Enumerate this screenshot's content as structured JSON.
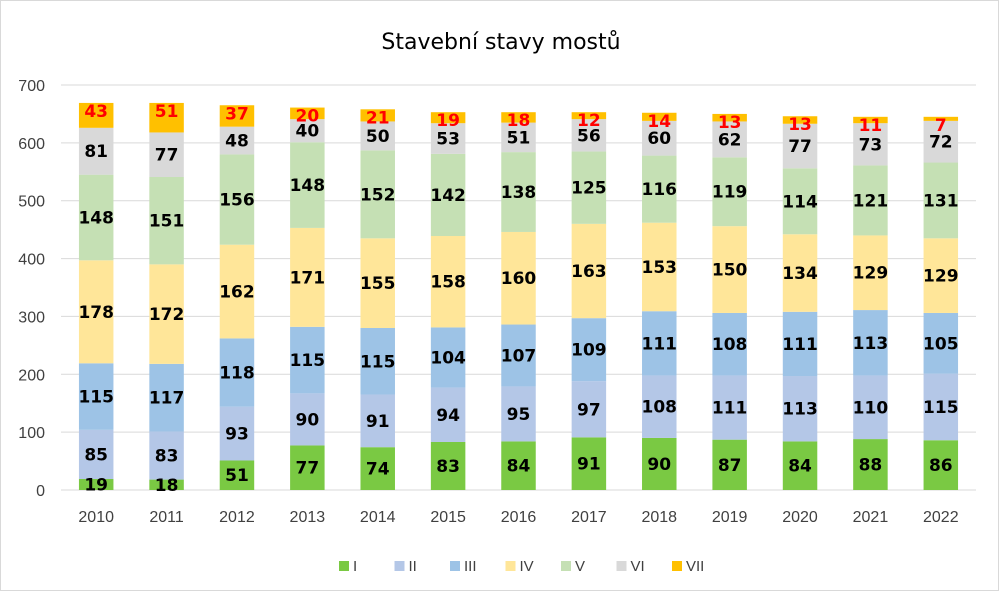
{
  "chart_data": {
    "type": "bar",
    "stacked": true,
    "title": "Stavební stavy mostů",
    "categories": [
      "2010",
      "2011",
      "2012",
      "2013",
      "2014",
      "2015",
      "2016",
      "2017",
      "2018",
      "2019",
      "2020",
      "2021",
      "2022"
    ],
    "series": [
      {
        "name": "I",
        "color": "#7ac943",
        "label_color": "#000000",
        "values": [
          19,
          18,
          51,
          77,
          74,
          83,
          84,
          91,
          90,
          87,
          84,
          88,
          86
        ]
      },
      {
        "name": "II",
        "color": "#b4c7e7",
        "label_color": "#000000",
        "values": [
          85,
          83,
          93,
          90,
          91,
          94,
          95,
          97,
          108,
          111,
          113,
          110,
          115
        ]
      },
      {
        "name": "III",
        "color": "#9dc3e6",
        "label_color": "#000000",
        "values": [
          115,
          117,
          118,
          115,
          115,
          104,
          107,
          109,
          111,
          108,
          111,
          113,
          105
        ]
      },
      {
        "name": "IV",
        "color": "#ffe699",
        "label_color": "#000000",
        "values": [
          178,
          172,
          162,
          171,
          155,
          158,
          160,
          163,
          153,
          150,
          134,
          129,
          129
        ]
      },
      {
        "name": "V",
        "color": "#c5e0b4",
        "label_color": "#000000",
        "values": [
          148,
          151,
          156,
          148,
          152,
          142,
          138,
          125,
          116,
          119,
          114,
          121,
          131
        ]
      },
      {
        "name": "VI",
        "color": "#d9d9d9",
        "label_color": "#000000",
        "values": [
          81,
          77,
          48,
          40,
          50,
          53,
          51,
          56,
          60,
          62,
          77,
          73,
          72
        ]
      },
      {
        "name": "VII",
        "color": "#ffc000",
        "label_color": "#ff0000",
        "values": [
          43,
          51,
          37,
          20,
          21,
          19,
          18,
          12,
          14,
          13,
          13,
          11,
          7
        ]
      }
    ],
    "yticks": [
      "0",
      "100",
      "200",
      "300",
      "400",
      "500",
      "600",
      "700"
    ],
    "ylim": [
      0,
      700
    ],
    "grid": true,
    "legend_position": "bottom"
  }
}
